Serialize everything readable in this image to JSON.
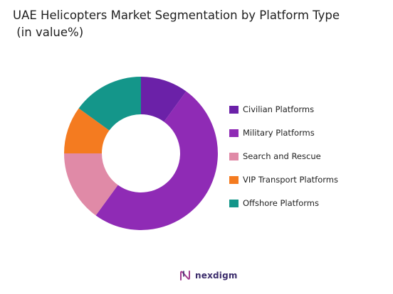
{
  "title": {
    "line1": "UAE Helicopters Market Segmentation by Platform Type",
    "line2": " (in value%)"
  },
  "chart_data": {
    "type": "pie",
    "categories": [
      "Civilian Platforms",
      "Military Platforms",
      "Search and Rescue",
      "VIP Transport Platforms",
      "Offshore Platforms"
    ],
    "values": [
      10,
      50,
      15,
      10,
      15
    ],
    "colors": [
      "#6b21a8",
      "#8f2bb5",
      "#e08aa7",
      "#f47b20",
      "#14968a"
    ],
    "donut": true,
    "legend_position": "right",
    "data_labels": false
  },
  "brand": {
    "name": "nexdigm",
    "icon": "nexdigm-logo-icon"
  }
}
